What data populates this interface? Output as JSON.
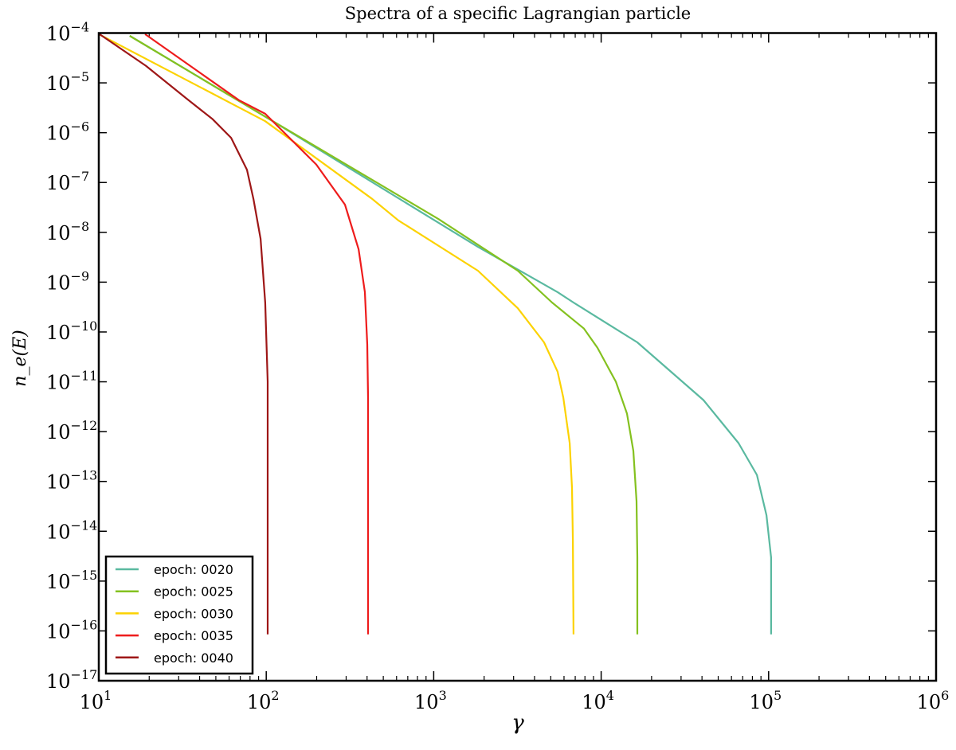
{
  "chart_data": {
    "type": "line",
    "title": "Spectra of a specific Lagrangian particle",
    "xlabel": "γ",
    "ylabel": "n_e(E)",
    "xscale": "log",
    "yscale": "log",
    "xlim": [
      10,
      1000000
    ],
    "ylim": [
      1e-17,
      0.0001
    ],
    "x_tick_labels": [
      {
        "value": 10,
        "base": "10",
        "exp": "1"
      },
      {
        "value": 100,
        "base": "10",
        "exp": "2"
      },
      {
        "value": 1000,
        "base": "10",
        "exp": "3"
      },
      {
        "value": 10000,
        "base": "10",
        "exp": "4"
      },
      {
        "value": 100000,
        "base": "10",
        "exp": "5"
      },
      {
        "value": 1000000,
        "base": "10",
        "exp": "6"
      }
    ],
    "y_tick_labels": [
      {
        "value": 0.0001,
        "base": "10",
        "exp": "−4"
      },
      {
        "value": 1e-05,
        "base": "10",
        "exp": "−5"
      },
      {
        "value": 1e-06,
        "base": "10",
        "exp": "−6"
      },
      {
        "value": 1e-07,
        "base": "10",
        "exp": "−7"
      },
      {
        "value": 1e-08,
        "base": "10",
        "exp": "−8"
      },
      {
        "value": 1e-09,
        "base": "10",
        "exp": "−9"
      },
      {
        "value": 1e-10,
        "base": "10",
        "exp": "−10"
      },
      {
        "value": 1e-11,
        "base": "10",
        "exp": "−11"
      },
      {
        "value": 1e-12,
        "base": "10",
        "exp": "−12"
      },
      {
        "value": 1e-13,
        "base": "10",
        "exp": "−13"
      },
      {
        "value": 1e-14,
        "base": "10",
        "exp": "−14"
      },
      {
        "value": 1e-15,
        "base": "10",
        "exp": "−15"
      },
      {
        "value": 1e-16,
        "base": "10",
        "exp": "−16"
      },
      {
        "value": 1e-17,
        "base": "10",
        "exp": "−17"
      }
    ],
    "grid": false,
    "legend_position": "bottom-left",
    "series": [
      {
        "name": "epoch: 0020",
        "color": "#5ab9a0",
        "points": [
          [
            15.3,
            8.8e-05
          ],
          [
            101,
            2e-06
          ],
          [
            1837,
            5.1e-09
          ],
          [
            5495,
            6.3e-10
          ],
          [
            6839,
            3.9e-10
          ],
          [
            16440,
            6.2e-11
          ],
          [
            40830,
            4.3e-12
          ],
          [
            66070,
            5.9e-13
          ],
          [
            85110,
            1.35e-13
          ],
          [
            97050,
            2.1e-14
          ],
          [
            103500,
            3e-15
          ],
          [
            103500,
            8.5e-17
          ]
        ]
      },
      {
        "name": "epoch: 0025",
        "color": "#84c11f",
        "points": [
          [
            15.3,
            8.8e-05
          ],
          [
            101,
            2e-06
          ],
          [
            1064,
            1.86e-08
          ],
          [
            3177,
            1.7e-09
          ],
          [
            5093,
            3.9e-10
          ],
          [
            7889,
            1.17e-10
          ],
          [
            9506,
            4.8e-11
          ],
          [
            12250,
            1e-11
          ],
          [
            14260,
            2.3e-12
          ],
          [
            15560,
            4.1e-13
          ],
          [
            16260,
            4e-14
          ],
          [
            16440,
            3e-15
          ],
          [
            16440,
            8.5e-17
          ]
        ]
      },
      {
        "name": "epoch: 0030",
        "color": "#fcd201",
        "points": [
          [
            10,
            9.5e-05
          ],
          [
            98.6,
            1.7e-06
          ],
          [
            428.5,
            4.7e-08
          ],
          [
            615,
            1.74e-08
          ],
          [
            1837,
            1.7e-09
          ],
          [
            3177,
            3e-10
          ],
          [
            4560,
            6.2e-11
          ],
          [
            5495,
            1.6e-11
          ],
          [
            5943,
            4.8e-12
          ],
          [
            6486,
            5.9e-13
          ],
          [
            6699,
            7.4e-14
          ],
          [
            6776,
            6.3e-15
          ],
          [
            6839,
            8.5e-17
          ]
        ]
      },
      {
        "name": "epoch: 0035",
        "color": "#ee1c1c",
        "points": [
          [
            18.9,
            9.5e-05
          ],
          [
            68.7,
            4.5e-06
          ],
          [
            98.6,
            2.4e-06
          ],
          [
            199,
            2.3e-07
          ],
          [
            295,
            3.6e-08
          ],
          [
            356,
            4.6e-09
          ],
          [
            388,
            6.3e-10
          ],
          [
            401,
            5.6e-11
          ],
          [
            405.5,
            4.8e-12
          ],
          [
            405.5,
            8.5e-17
          ]
        ]
      },
      {
        "name": "epoch: 0040",
        "color": "#9e1717",
        "points": [
          [
            10.1,
            9.5e-05
          ],
          [
            19.1,
            2.2e-05
          ],
          [
            33.0,
            5e-06
          ],
          [
            47.9,
            1.86e-06
          ],
          [
            61.7,
            7.9e-07
          ],
          [
            76.7,
            1.8e-07
          ],
          [
            83.8,
            4.7e-08
          ],
          [
            92.5,
            7.4e-09
          ],
          [
            98.6,
            3.9e-10
          ],
          [
            102,
            1e-11
          ],
          [
            102,
            8.5e-17
          ]
        ]
      }
    ]
  }
}
